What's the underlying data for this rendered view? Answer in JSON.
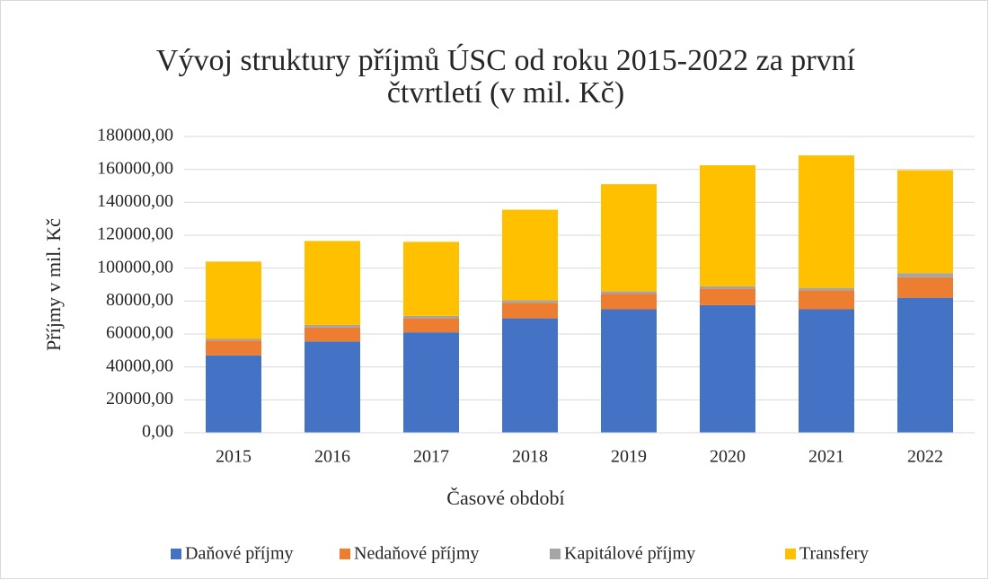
{
  "chart_data": {
    "type": "stacked_bar",
    "title_lines": [
      "Vývoj struktury příjmů ÚSC od roku 2015-2022 za první",
      "čtvrtletí (v mil. Kč)"
    ],
    "x_label": "Časové období",
    "y_label": "Příjmy v mil. Kč",
    "categories": [
      "2015",
      "2016",
      "2017",
      "2018",
      "2019",
      "2020",
      "2021",
      "2022"
    ],
    "series": [
      {
        "name": "Daňové příjmy",
        "color": "#4472c4",
        "values": [
          47000,
          55500,
          61000,
          69500,
          75000,
          77500,
          75000,
          82000
        ]
      },
      {
        "name": "Nedaňové příjmy",
        "color": "#ed7d31",
        "values": [
          9000,
          8500,
          8500,
          9500,
          9500,
          10000,
          11500,
          12500
        ]
      },
      {
        "name": "Kapitálové příjmy",
        "color": "#a5a5a5",
        "values": [
          1000,
          1500,
          1500,
          1500,
          1500,
          1500,
          1500,
          2500
        ]
      },
      {
        "name": "Transfery",
        "color": "#ffc000",
        "values": [
          47000,
          51000,
          45000,
          55000,
          65000,
          73500,
          80500,
          62500
        ]
      }
    ],
    "ylim": [
      0,
      180000
    ],
    "yticks": [
      {
        "value": 0,
        "label": "0,00"
      },
      {
        "value": 20000,
        "label": "20000,00"
      },
      {
        "value": 40000,
        "label": "40000,00"
      },
      {
        "value": 60000,
        "label": "60000,00"
      },
      {
        "value": 80000,
        "label": "80000,00"
      },
      {
        "value": 100000,
        "label": "100000,00"
      },
      {
        "value": 120000,
        "label": "120000,00"
      },
      {
        "value": 140000,
        "label": "140000,00"
      },
      {
        "value": 160000,
        "label": "160000,00"
      },
      {
        "value": 180000,
        "label": "180000,00"
      }
    ],
    "grid": true,
    "legend": "bottom"
  }
}
